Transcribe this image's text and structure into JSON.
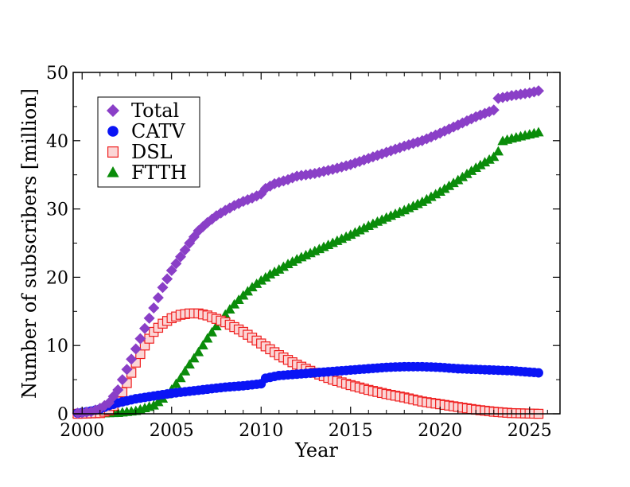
{
  "chart_data": {
    "type": "scatter",
    "title": "",
    "xlabel": "Year",
    "ylabel": "Number of subscribers [million]",
    "xlim": [
      1999.5,
      2026.7
    ],
    "ylim": [
      0,
      50
    ],
    "xticks": [
      2000,
      2005,
      2010,
      2015,
      2020,
      2025
    ],
    "yticks": [
      0,
      10,
      20,
      30,
      40,
      50
    ],
    "grid": false,
    "legend_position": "top-left",
    "marker_interval_years": 0.25,
    "series": [
      {
        "name": "Total",
        "marker": "diamond",
        "color": "#8a3fc7",
        "keypoints": [
          [
            1999.75,
            0.1
          ],
          [
            2000.5,
            0.3
          ],
          [
            2001.0,
            0.8
          ],
          [
            2001.5,
            1.6
          ],
          [
            2002.0,
            3.5
          ],
          [
            2002.5,
            6.5
          ],
          [
            2003.0,
            9.5
          ],
          [
            2003.5,
            12.5
          ],
          [
            2004.0,
            15.5
          ],
          [
            2004.5,
            18.5
          ],
          [
            2005.0,
            21.0
          ],
          [
            2005.5,
            23.0
          ],
          [
            2006.0,
            25.0
          ],
          [
            2006.5,
            26.8
          ],
          [
            2007.0,
            28.0
          ],
          [
            2007.5,
            29.0
          ],
          [
            2008.0,
            29.8
          ],
          [
            2008.5,
            30.5
          ],
          [
            2009.0,
            31.1
          ],
          [
            2009.5,
            31.6
          ],
          [
            2010.0,
            32.2
          ],
          [
            2010.25,
            33.0
          ],
          [
            2010.75,
            33.7
          ],
          [
            2011.5,
            34.3
          ],
          [
            2012.0,
            34.8
          ],
          [
            2013.0,
            35.2
          ],
          [
            2014.0,
            35.8
          ],
          [
            2015.0,
            36.5
          ],
          [
            2016.0,
            37.4
          ],
          [
            2017.0,
            38.3
          ],
          [
            2018.0,
            39.2
          ],
          [
            2019.0,
            40.0
          ],
          [
            2020.0,
            41.1
          ],
          [
            2021.0,
            42.3
          ],
          [
            2022.0,
            43.5
          ],
          [
            2023.0,
            44.5
          ],
          [
            2023.25,
            46.2
          ],
          [
            2024.0,
            46.6
          ],
          [
            2025.0,
            47.0
          ],
          [
            2025.5,
            47.3
          ]
        ]
      },
      {
        "name": "CATV",
        "marker": "circle",
        "color": "#0a14f5",
        "keypoints": [
          [
            1999.75,
            0.1
          ],
          [
            2000.5,
            0.4
          ],
          [
            2001.0,
            0.7
          ],
          [
            2001.5,
            1.2
          ],
          [
            2002.0,
            1.6
          ],
          [
            2003.0,
            2.2
          ],
          [
            2004.0,
            2.6
          ],
          [
            2005.0,
            3.0
          ],
          [
            2006.0,
            3.3
          ],
          [
            2007.0,
            3.6
          ],
          [
            2008.0,
            3.9
          ],
          [
            2009.0,
            4.1
          ],
          [
            2010.0,
            4.4
          ],
          [
            2010.25,
            5.2
          ],
          [
            2011.0,
            5.6
          ],
          [
            2012.0,
            5.8
          ],
          [
            2013.0,
            6.0
          ],
          [
            2014.0,
            6.2
          ],
          [
            2015.0,
            6.4
          ],
          [
            2016.0,
            6.6
          ],
          [
            2017.0,
            6.8
          ],
          [
            2018.0,
            6.9
          ],
          [
            2019.0,
            6.9
          ],
          [
            2020.0,
            6.8
          ],
          [
            2021.0,
            6.6
          ],
          [
            2022.0,
            6.5
          ],
          [
            2023.0,
            6.4
          ],
          [
            2024.0,
            6.3
          ],
          [
            2025.0,
            6.1
          ],
          [
            2025.5,
            6.0
          ]
        ]
      },
      {
        "name": "DSL",
        "marker": "square",
        "color": "#ef1f1f",
        "keypoints": [
          [
            1999.75,
            0.0
          ],
          [
            2001.0,
            0.1
          ],
          [
            2001.5,
            0.5
          ],
          [
            2002.0,
            1.8
          ],
          [
            2002.5,
            4.5
          ],
          [
            2003.0,
            7.5
          ],
          [
            2003.5,
            10.0
          ],
          [
            2004.0,
            12.0
          ],
          [
            2004.5,
            13.2
          ],
          [
            2005.0,
            14.0
          ],
          [
            2005.5,
            14.5
          ],
          [
            2006.0,
            14.7
          ],
          [
            2006.5,
            14.7
          ],
          [
            2007.0,
            14.4
          ],
          [
            2008.0,
            13.4
          ],
          [
            2009.0,
            12.0
          ],
          [
            2010.0,
            10.3
          ],
          [
            2011.0,
            8.6
          ],
          [
            2012.0,
            7.2
          ],
          [
            2013.0,
            6.0
          ],
          [
            2014.0,
            5.0
          ],
          [
            2015.0,
            4.2
          ],
          [
            2016.0,
            3.5
          ],
          [
            2017.0,
            2.9
          ],
          [
            2018.0,
            2.4
          ],
          [
            2019.0,
            1.8
          ],
          [
            2020.0,
            1.4
          ],
          [
            2021.0,
            1.0
          ],
          [
            2022.0,
            0.6
          ],
          [
            2023.0,
            0.3
          ],
          [
            2024.0,
            0.1
          ],
          [
            2025.5,
            0.0
          ]
        ]
      },
      {
        "name": "FTTH",
        "marker": "triangle",
        "color": "#0a8c0a",
        "keypoints": [
          [
            1999.75,
            0.0
          ],
          [
            2002.0,
            0.1
          ],
          [
            2003.0,
            0.4
          ],
          [
            2004.0,
            1.2
          ],
          [
            2004.5,
            2.2
          ],
          [
            2005.0,
            3.5
          ],
          [
            2005.5,
            5.2
          ],
          [
            2006.0,
            7.2
          ],
          [
            2006.5,
            9.0
          ],
          [
            2007.0,
            11.0
          ],
          [
            2007.5,
            12.8
          ],
          [
            2008.0,
            14.5
          ],
          [
            2008.5,
            16.0
          ],
          [
            2009.0,
            17.3
          ],
          [
            2009.5,
            18.5
          ],
          [
            2010.0,
            19.5
          ],
          [
            2010.5,
            20.4
          ],
          [
            2011.0,
            21.1
          ],
          [
            2011.5,
            21.9
          ],
          [
            2012.0,
            22.6
          ],
          [
            2013.0,
            23.8
          ],
          [
            2014.0,
            25.0
          ],
          [
            2015.0,
            26.2
          ],
          [
            2016.0,
            27.5
          ],
          [
            2017.0,
            28.7
          ],
          [
            2018.0,
            29.8
          ],
          [
            2019.0,
            31.0
          ],
          [
            2020.0,
            32.5
          ],
          [
            2021.0,
            34.2
          ],
          [
            2022.0,
            36.0
          ],
          [
            2023.0,
            37.6
          ],
          [
            2023.25,
            38.4
          ],
          [
            2023.35,
            39.8
          ],
          [
            2024.0,
            40.3
          ],
          [
            2025.0,
            40.9
          ],
          [
            2025.5,
            41.2
          ]
        ]
      }
    ]
  }
}
